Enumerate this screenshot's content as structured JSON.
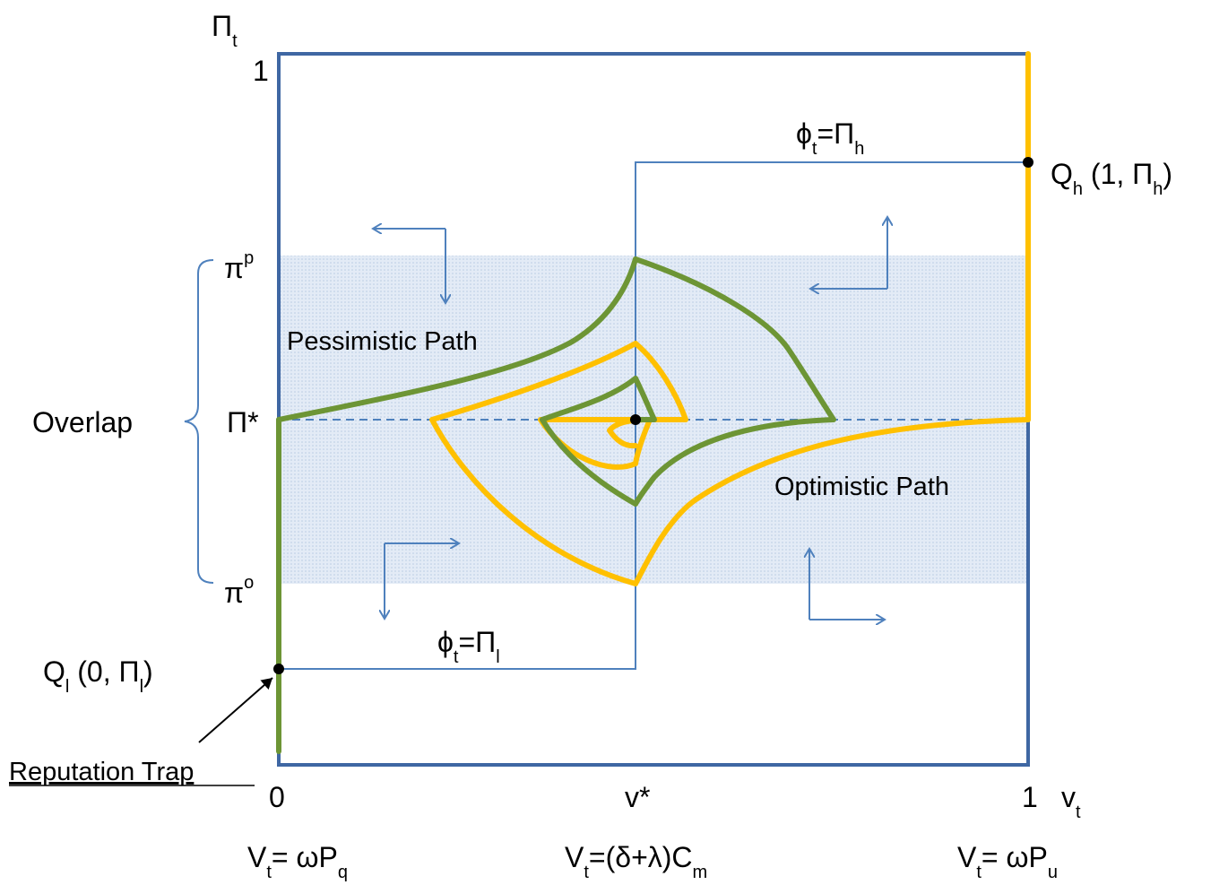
{
  "axes": {
    "y_axis_symbol": "Π",
    "y_axis_sub": "t",
    "y_top_tick": "1",
    "x_tick_0": "0",
    "x_tick_mid": "v*",
    "x_tick_1": "1",
    "x_axis_symbol": "v",
    "x_axis_sub": "t"
  },
  "y_levels": {
    "pi_p": "π",
    "pi_p_sup": "p",
    "pi_star": "Π*",
    "pi_o": "π",
    "pi_o_sup": "o"
  },
  "bracket_label": "Overlap",
  "paths": {
    "pessimistic": "Pessimistic Path",
    "optimistic": "Optimistic Path"
  },
  "phi_labels": {
    "high_main": "ϕ",
    "high_sub": "t",
    "high_eq": "=Π",
    "high_sub2": "h",
    "low_main": "ϕ",
    "low_sub": "t",
    "low_eq": "=Π",
    "low_sub2": "l"
  },
  "points": {
    "qh_main": "Q",
    "qh_sub": "h",
    "qh_mid": " (1, Π",
    "qh_sub2": "h",
    "qh_end": ")",
    "ql_main": "Q",
    "ql_sub": "l",
    "ql_mid": " (0, Π",
    "ql_sub2": "l",
    "ql_end": ")"
  },
  "trap_label": "Reputation Trap",
  "bottom_formulas": {
    "left_v": "V",
    "left_sub": "t",
    "left_rest": "= ωP",
    "left_sub2": "q",
    "mid_v": "V",
    "mid_sub": "t",
    "mid_rest": "=(δ+λ)C",
    "mid_sub2": "m",
    "right_v": "V",
    "right_sub": "t",
    "right_rest": "= ωP",
    "right_sub2": "u"
  },
  "colors": {
    "frame": "#3f67a3",
    "band": "#dce6f2",
    "green_path": "#6d9535",
    "yellow_path": "#ffc000",
    "arrow": "#4f81bd"
  }
}
